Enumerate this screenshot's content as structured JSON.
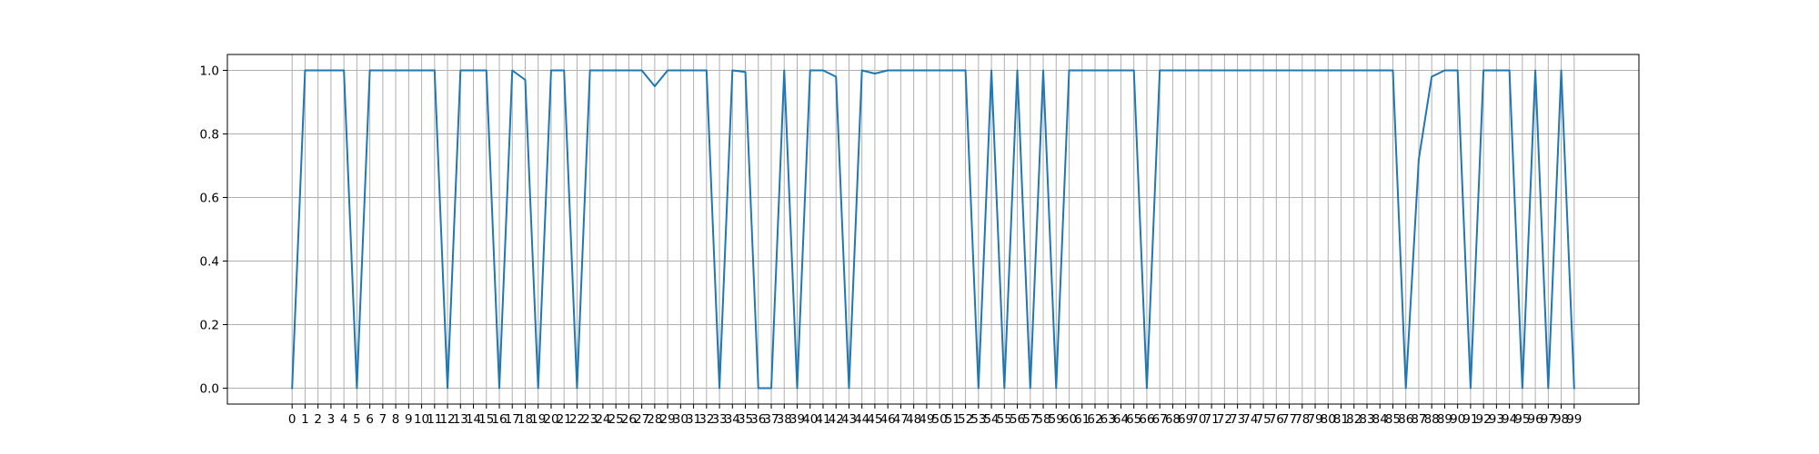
{
  "chart_data": {
    "type": "line",
    "title": "",
    "xlabel": "",
    "ylabel": "",
    "x": [
      0,
      1,
      2,
      3,
      4,
      5,
      6,
      7,
      8,
      9,
      10,
      11,
      12,
      13,
      14,
      15,
      16,
      17,
      18,
      19,
      20,
      21,
      22,
      23,
      24,
      25,
      26,
      27,
      28,
      29,
      30,
      31,
      32,
      33,
      34,
      35,
      36,
      37,
      38,
      39,
      40,
      41,
      42,
      43,
      44,
      45,
      46,
      47,
      48,
      49,
      50,
      51,
      52,
      53,
      54,
      55,
      56,
      57,
      58,
      59,
      60,
      61,
      62,
      63,
      64,
      65,
      66,
      67,
      68,
      69,
      70,
      71,
      72,
      73,
      74,
      75,
      76,
      77,
      78,
      79,
      80,
      81,
      82,
      83,
      84,
      85,
      86,
      87,
      88,
      89,
      90,
      91,
      92,
      93,
      94,
      95,
      96,
      97,
      98,
      99
    ],
    "series": [
      {
        "values": [
          0,
          1,
          1,
          1,
          1,
          0,
          1,
          1,
          1,
          1,
          1,
          1,
          0,
          1,
          1,
          1,
          0,
          1,
          0.97,
          0,
          1,
          1,
          0,
          1,
          1,
          1,
          1,
          1,
          0.95,
          1,
          1,
          1,
          1,
          0,
          1,
          0.995,
          0,
          0,
          1,
          0,
          1,
          1,
          0.98,
          0,
          1,
          0.99,
          1,
          1,
          1,
          1,
          1,
          1,
          1,
          0,
          1,
          0,
          1,
          0,
          1,
          0,
          1,
          1,
          1,
          1,
          1,
          1,
          0,
          1,
          1,
          1,
          1,
          1,
          1,
          1,
          1,
          1,
          1,
          1,
          1,
          1,
          1,
          1,
          1,
          1,
          1,
          1,
          0,
          0.72,
          0.98,
          1,
          1,
          0,
          1,
          1,
          1,
          0,
          1,
          0,
          1,
          0
        ]
      }
    ],
    "xlim": [
      -5,
      104
    ],
    "ylim": [
      -0.05,
      1.05
    ],
    "y_ticks": [
      0.0,
      0.2,
      0.4,
      0.6,
      0.8,
      1.0
    ],
    "y_tick_labels": [
      "0.0",
      "0.2",
      "0.4",
      "0.6",
      "0.8",
      "1.0"
    ],
    "grid": true,
    "legend": "none",
    "colors": {
      "line": "#1f77b4",
      "grid": "#b0b0b0",
      "axes": "#000000"
    }
  }
}
